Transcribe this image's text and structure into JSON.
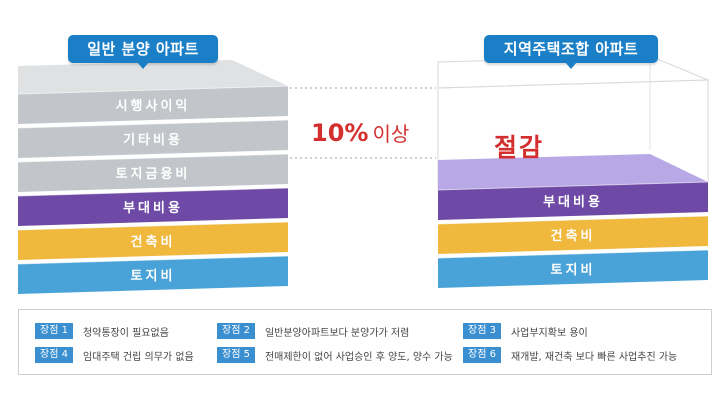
{
  "left_title": "일반 분양 아파트",
  "right_title": "지역주택조합 아파트",
  "left_layers": [
    "시행사이익",
    "기타비용",
    "토지금융비",
    "부대비용",
    "건축비",
    "토지비"
  ],
  "right_layers": [
    "부대비용",
    "건축비",
    "토지비"
  ],
  "percent_value": "10%",
  "percent_suffix": "이상",
  "saving_label": "절감",
  "colors": {
    "gray_front": "#c2c6ca",
    "gray_top": "#dfe1e3",
    "purple_front": "#6e4aa6",
    "purple_top": "#8d6cc7",
    "yellow_front": "#f0b83d",
    "yellow_top": "#f6cf6f",
    "blue_front": "#4aa3d8",
    "blue_top": "#7cc1e8",
    "lavender": "#b9a8e6",
    "accent_red": "#d32f2f",
    "tag_blue": "#1a7fc6"
  },
  "benefits": [
    {
      "badge": "장점 1",
      "text": "청약통장이 필요없음"
    },
    {
      "badge": "장점 2",
      "text": "일반분양아파트보다 분양가가 저렴"
    },
    {
      "badge": "장점 3",
      "text": "사업부지확보 용이"
    },
    {
      "badge": "장점 4",
      "text": "임대주택 건립 의무가 없음"
    },
    {
      "badge": "장점 5",
      "text": "전매제한이 없어 사업승인 후 양도, 양수 가능"
    },
    {
      "badge": "장점 6",
      "text": "재개발, 재건축 보다 빠른 사업추진 가능"
    }
  ]
}
